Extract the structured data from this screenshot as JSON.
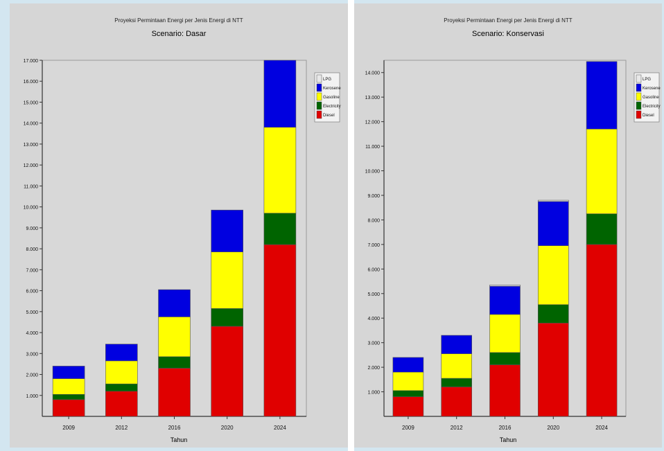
{
  "chart_data": [
    {
      "type": "bar",
      "stacked": true,
      "title": "Proyeksi Permintaan Energi per Jenis Energi di NTT",
      "subtitle": "Scenario: Dasar",
      "xlabel": "Tahun",
      "ylabel": "",
      "categories": [
        "2009",
        "2012",
        "2016",
        "2020",
        "2024"
      ],
      "ylim": [
        0,
        17000
      ],
      "yticks": [
        "1.000",
        "2.000",
        "3.000",
        "4.000",
        "5.000",
        "6.000",
        "7.000",
        "8.000",
        "9.000",
        "10.000",
        "11.000",
        "12.000",
        "13.000",
        "14.000",
        "15.000",
        "16.000",
        "17.000"
      ],
      "legend_position": "top-right",
      "series": [
        {
          "name": "Diesel",
          "color": "#e00000",
          "values": [
            800,
            1200,
            2300,
            4300,
            8200
          ]
        },
        {
          "name": "Electricity",
          "color": "#006400",
          "values": [
            250,
            350,
            550,
            850,
            1500
          ]
        },
        {
          "name": "Gasoline",
          "color": "#ffff00",
          "values": [
            750,
            1100,
            1900,
            2700,
            4100
          ]
        },
        {
          "name": "Kerosene",
          "color": "#0000e0",
          "values": [
            600,
            800,
            1300,
            2000,
            3200
          ]
        },
        {
          "name": "LPG",
          "color": "#e8e8e8",
          "values": [
            0,
            0,
            0,
            0,
            0
          ]
        }
      ]
    },
    {
      "type": "bar",
      "stacked": true,
      "title": "Proyeksi Permintaan Energi per Jenis Energi di NTT",
      "subtitle": "Scenario: Konservasi",
      "xlabel": "Tahun",
      "ylabel": "",
      "categories": [
        "2009",
        "2012",
        "2016",
        "2020",
        "2024"
      ],
      "ylim": [
        0,
        14500
      ],
      "yticks": [
        "1.000",
        "2.000",
        "3.000",
        "4.000",
        "5.000",
        "6.000",
        "7.000",
        "8.000",
        "9.000",
        "10.000",
        "11.000",
        "12.000",
        "13.000",
        "14.000"
      ],
      "legend_position": "top-right",
      "series": [
        {
          "name": "Diesel",
          "color": "#e00000",
          "values": [
            800,
            1200,
            2100,
            3800,
            7000
          ]
        },
        {
          "name": "Electricity",
          "color": "#006400",
          "values": [
            250,
            350,
            500,
            750,
            1250
          ]
        },
        {
          "name": "Gasoline",
          "color": "#ffff00",
          "values": [
            750,
            1000,
            1550,
            2400,
            3450
          ]
        },
        {
          "name": "Kerosene",
          "color": "#0000e0",
          "values": [
            600,
            750,
            1150,
            1800,
            2750
          ]
        },
        {
          "name": "LPG",
          "color": "#e8e8e8",
          "values": [
            0,
            0,
            50,
            50,
            0
          ]
        }
      ]
    }
  ]
}
